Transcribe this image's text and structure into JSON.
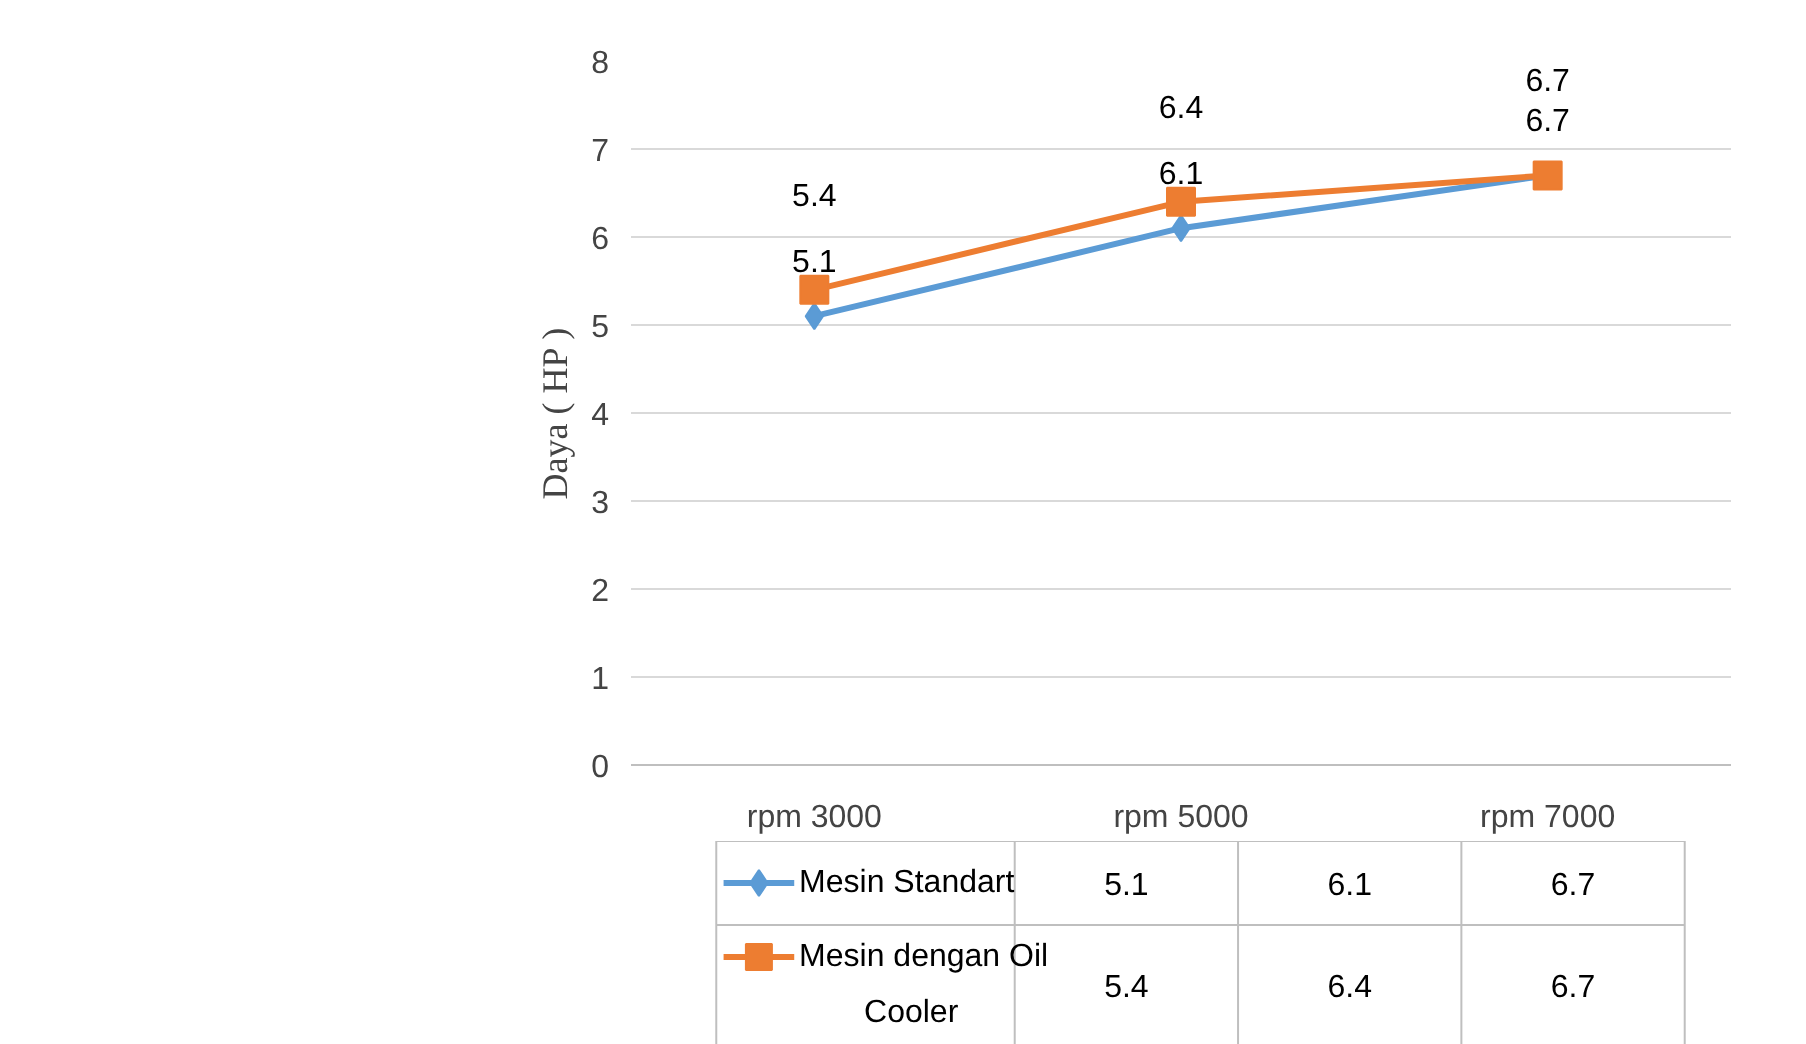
{
  "chart_data": {
    "type": "line",
    "ylabel": "Daya ( HP )",
    "categories": [
      "rpm 3000",
      "rpm 5000",
      "rpm 7000"
    ],
    "series": [
      {
        "name": "Mesin Standart",
        "color": "#5b9bd5",
        "values": [
          5.1,
          6.1,
          6.7
        ],
        "marker": "diamond",
        "value_labels": [
          "5.1",
          "6.1",
          "6.7"
        ]
      },
      {
        "name": "Mesin dengan Oil Cooler",
        "color": "#ed7d31",
        "values": [
          5.4,
          6.4,
          6.7
        ],
        "marker": "square",
        "value_labels": [
          "5.4",
          "6.4",
          "6.7"
        ]
      }
    ],
    "ylim": [
      0,
      8
    ],
    "yticks": [
      0,
      1,
      2,
      3,
      4,
      5,
      6,
      7,
      8
    ],
    "grid": "y",
    "data_labels": true,
    "legend": "bottom",
    "line_style": "solid"
  }
}
